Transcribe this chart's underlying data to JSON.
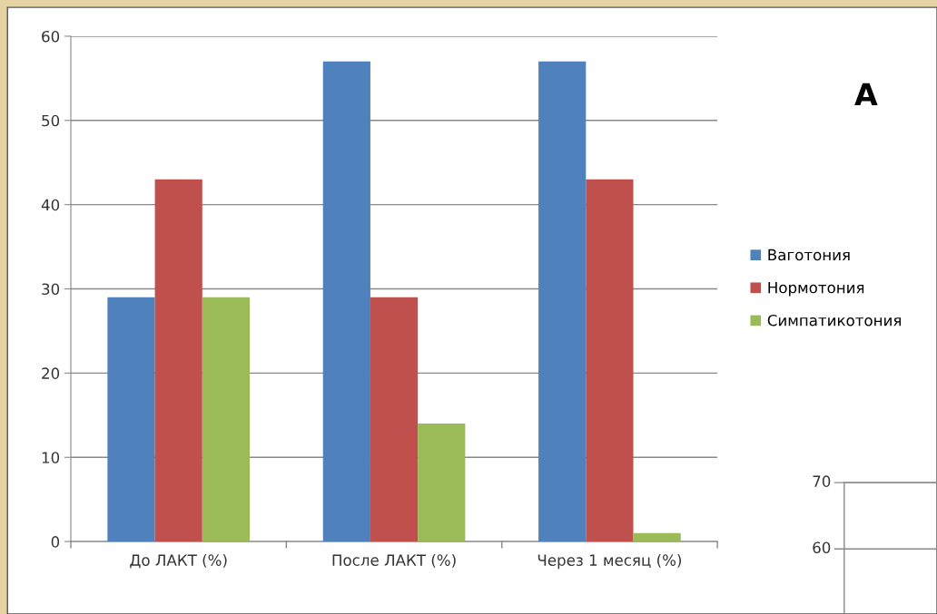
{
  "chart_data": [
    {
      "type": "bar",
      "categories": [
        "До ЛАКТ (%)",
        "После ЛАКТ (%)",
        "Через 1 месяц (%)"
      ],
      "series": [
        {
          "name": "Ваготония",
          "color": "#4f81bd",
          "values": [
            29,
            57,
            57
          ]
        },
        {
          "name": "Нормотония",
          "color": "#c0504d",
          "values": [
            43,
            29,
            43
          ]
        },
        {
          "name": "Симпатикотония",
          "color": "#9bbb59",
          "values": [
            29,
            14,
            1
          ]
        }
      ],
      "ylim": [
        0,
        60
      ],
      "yticks": [
        0,
        10,
        20,
        30,
        40,
        50,
        60
      ],
      "grid": "y",
      "legend": "right",
      "annotations": [
        "A"
      ]
    },
    {
      "type": "other",
      "annotations": [
        "70",
        "60"
      ]
    }
  ]
}
